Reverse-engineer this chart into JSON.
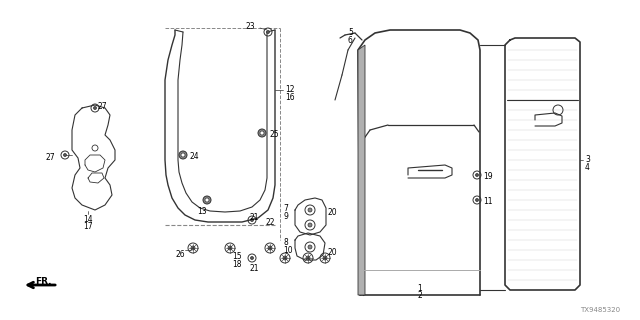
{
  "bg_color": "#ffffff",
  "fig_width": 6.4,
  "fig_height": 3.2,
  "dpi": 100,
  "diagram_color": "#333333",
  "watermark": "TX9485320"
}
